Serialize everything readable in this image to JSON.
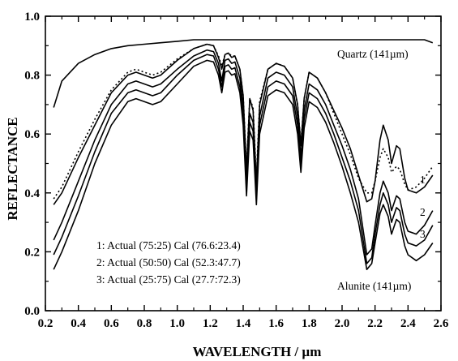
{
  "chart_data": {
    "type": "line",
    "xlabel": "WAVELENGTH / µm",
    "ylabel": "REFLECTANCE",
    "xlim": [
      0.2,
      2.6
    ],
    "ylim": [
      0.0,
      1.0
    ],
    "x_ticks": [
      0.2,
      0.4,
      0.6,
      0.8,
      1.0,
      1.2,
      1.4,
      1.6,
      1.8,
      2.0,
      2.2,
      2.4,
      2.6
    ],
    "y_ticks": [
      0.0,
      0.2,
      0.4,
      0.6,
      0.8,
      1.0
    ],
    "x_tick_labels": [
      "0.2",
      "0.4",
      "0.6",
      "0.8",
      "1.0",
      "1.2",
      "1.4",
      "1.6",
      "1.8",
      "2.0",
      "2.2",
      "2.4",
      "2.6"
    ],
    "y_tick_labels": [
      "0.0",
      "0.2",
      "0.4",
      "0.6",
      "0.8",
      "1.0"
    ],
    "grid": false,
    "legend_lines": [
      "1: Actual (75:25)  Cal (76.6:23.4)",
      "2: Actual (50:50)  Cal (52.3:47.7)",
      "3: Actual (25:75)  Cal (27.7:72.3)"
    ],
    "labels": {
      "quartz": "Quartz (141µm)",
      "alunite": "Alunite (141µm)",
      "curve1": "1",
      "curve2": "2",
      "curve3": "3"
    },
    "series": [
      {
        "name": "Quartz (141µm)",
        "style": "solid",
        "points": [
          [
            0.25,
            0.69
          ],
          [
            0.3,
            0.78
          ],
          [
            0.4,
            0.84
          ],
          [
            0.5,
            0.87
          ],
          [
            0.6,
            0.89
          ],
          [
            0.7,
            0.9
          ],
          [
            0.8,
            0.905
          ],
          [
            0.9,
            0.91
          ],
          [
            1.0,
            0.915
          ],
          [
            1.1,
            0.92
          ],
          [
            1.2,
            0.92
          ],
          [
            1.3,
            0.92
          ],
          [
            1.4,
            0.92
          ],
          [
            1.5,
            0.92
          ],
          [
            1.6,
            0.92
          ],
          [
            1.7,
            0.92
          ],
          [
            1.8,
            0.92
          ],
          [
            1.9,
            0.92
          ],
          [
            2.0,
            0.92
          ],
          [
            2.1,
            0.92
          ],
          [
            2.2,
            0.92
          ],
          [
            2.3,
            0.92
          ],
          [
            2.4,
            0.92
          ],
          [
            2.5,
            0.92
          ],
          [
            2.55,
            0.91
          ]
        ]
      },
      {
        "name": "1",
        "style": "solid",
        "points": [
          [
            0.25,
            0.36
          ],
          [
            0.3,
            0.4
          ],
          [
            0.4,
            0.52
          ],
          [
            0.5,
            0.63
          ],
          [
            0.6,
            0.74
          ],
          [
            0.7,
            0.8
          ],
          [
            0.75,
            0.81
          ],
          [
            0.8,
            0.8
          ],
          [
            0.85,
            0.79
          ],
          [
            0.9,
            0.8
          ],
          [
            1.0,
            0.85
          ],
          [
            1.1,
            0.89
          ],
          [
            1.18,
            0.905
          ],
          [
            1.22,
            0.9
          ],
          [
            1.25,
            0.86
          ],
          [
            1.27,
            0.82
          ],
          [
            1.29,
            0.87
          ],
          [
            1.31,
            0.875
          ],
          [
            1.33,
            0.86
          ],
          [
            1.35,
            0.865
          ],
          [
            1.38,
            0.82
          ],
          [
            1.4,
            0.73
          ],
          [
            1.42,
            0.47
          ],
          [
            1.44,
            0.72
          ],
          [
            1.46,
            0.68
          ],
          [
            1.48,
            0.43
          ],
          [
            1.5,
            0.7
          ],
          [
            1.55,
            0.82
          ],
          [
            1.6,
            0.84
          ],
          [
            1.65,
            0.83
          ],
          [
            1.7,
            0.79
          ],
          [
            1.73,
            0.7
          ],
          [
            1.75,
            0.56
          ],
          [
            1.77,
            0.72
          ],
          [
            1.8,
            0.81
          ],
          [
            1.85,
            0.79
          ],
          [
            1.9,
            0.74
          ],
          [
            1.95,
            0.68
          ],
          [
            2.0,
            0.62
          ],
          [
            2.05,
            0.55
          ],
          [
            2.1,
            0.46
          ],
          [
            2.15,
            0.37
          ],
          [
            2.18,
            0.38
          ],
          [
            2.2,
            0.44
          ],
          [
            2.23,
            0.58
          ],
          [
            2.25,
            0.63
          ],
          [
            2.28,
            0.58
          ],
          [
            2.3,
            0.5
          ],
          [
            2.33,
            0.56
          ],
          [
            2.35,
            0.55
          ],
          [
            2.38,
            0.45
          ],
          [
            2.4,
            0.41
          ],
          [
            2.45,
            0.4
          ],
          [
            2.5,
            0.42
          ],
          [
            2.55,
            0.46
          ]
        ]
      },
      {
        "name": "1 dotted",
        "style": "dotted",
        "points": [
          [
            0.25,
            0.38
          ],
          [
            0.3,
            0.42
          ],
          [
            0.4,
            0.54
          ],
          [
            0.5,
            0.65
          ],
          [
            0.6,
            0.75
          ],
          [
            0.7,
            0.81
          ],
          [
            0.75,
            0.82
          ],
          [
            0.8,
            0.81
          ],
          [
            0.85,
            0.8
          ],
          [
            0.9,
            0.81
          ],
          [
            1.0,
            0.855
          ],
          [
            1.1,
            0.89
          ],
          [
            1.18,
            0.905
          ],
          [
            1.22,
            0.9
          ],
          [
            1.25,
            0.865
          ],
          [
            1.27,
            0.83
          ],
          [
            1.29,
            0.87
          ],
          [
            1.31,
            0.875
          ],
          [
            1.33,
            0.865
          ],
          [
            1.35,
            0.865
          ],
          [
            1.38,
            0.82
          ],
          [
            1.4,
            0.73
          ],
          [
            1.42,
            0.49
          ],
          [
            1.44,
            0.72
          ],
          [
            1.46,
            0.69
          ],
          [
            1.48,
            0.45
          ],
          [
            1.5,
            0.71
          ],
          [
            1.55,
            0.82
          ],
          [
            1.6,
            0.84
          ],
          [
            1.65,
            0.83
          ],
          [
            1.7,
            0.79
          ],
          [
            1.73,
            0.7
          ],
          [
            1.75,
            0.57
          ],
          [
            1.77,
            0.72
          ],
          [
            1.8,
            0.81
          ],
          [
            1.85,
            0.79
          ],
          [
            1.9,
            0.74
          ],
          [
            1.95,
            0.67
          ],
          [
            2.0,
            0.6
          ],
          [
            2.05,
            0.53
          ],
          [
            2.1,
            0.45
          ],
          [
            2.15,
            0.4
          ],
          [
            2.18,
            0.4
          ],
          [
            2.2,
            0.44
          ],
          [
            2.23,
            0.52
          ],
          [
            2.25,
            0.55
          ],
          [
            2.28,
            0.52
          ],
          [
            2.3,
            0.47
          ],
          [
            2.33,
            0.49
          ],
          [
            2.35,
            0.48
          ],
          [
            2.38,
            0.43
          ],
          [
            2.4,
            0.41
          ],
          [
            2.45,
            0.42
          ],
          [
            2.5,
            0.45
          ],
          [
            2.55,
            0.49
          ]
        ]
      },
      {
        "name": "2",
        "style": "solid",
        "points": [
          [
            0.25,
            0.24
          ],
          [
            0.3,
            0.3
          ],
          [
            0.4,
            0.44
          ],
          [
            0.5,
            0.58
          ],
          [
            0.6,
            0.7
          ],
          [
            0.7,
            0.77
          ],
          [
            0.75,
            0.78
          ],
          [
            0.8,
            0.77
          ],
          [
            0.85,
            0.76
          ],
          [
            0.9,
            0.77
          ],
          [
            1.0,
            0.82
          ],
          [
            1.1,
            0.865
          ],
          [
            1.18,
            0.885
          ],
          [
            1.22,
            0.88
          ],
          [
            1.25,
            0.84
          ],
          [
            1.27,
            0.78
          ],
          [
            1.29,
            0.85
          ],
          [
            1.31,
            0.855
          ],
          [
            1.33,
            0.84
          ],
          [
            1.35,
            0.845
          ],
          [
            1.38,
            0.79
          ],
          [
            1.4,
            0.69
          ],
          [
            1.42,
            0.43
          ],
          [
            1.44,
            0.67
          ],
          [
            1.46,
            0.64
          ],
          [
            1.48,
            0.4
          ],
          [
            1.5,
            0.66
          ],
          [
            1.55,
            0.79
          ],
          [
            1.6,
            0.81
          ],
          [
            1.65,
            0.8
          ],
          [
            1.7,
            0.76
          ],
          [
            1.73,
            0.66
          ],
          [
            1.75,
            0.52
          ],
          [
            1.77,
            0.68
          ],
          [
            1.8,
            0.77
          ],
          [
            1.85,
            0.75
          ],
          [
            1.9,
            0.7
          ],
          [
            1.95,
            0.63
          ],
          [
            2.0,
            0.56
          ],
          [
            2.05,
            0.48
          ],
          [
            2.1,
            0.38
          ],
          [
            2.15,
            0.19
          ],
          [
            2.18,
            0.21
          ],
          [
            2.2,
            0.29
          ],
          [
            2.23,
            0.4
          ],
          [
            2.25,
            0.44
          ],
          [
            2.28,
            0.4
          ],
          [
            2.3,
            0.34
          ],
          [
            2.33,
            0.39
          ],
          [
            2.35,
            0.38
          ],
          [
            2.38,
            0.3
          ],
          [
            2.4,
            0.27
          ],
          [
            2.45,
            0.26
          ],
          [
            2.5,
            0.29
          ],
          [
            2.55,
            0.34
          ]
        ]
      },
      {
        "name": "3",
        "style": "solid",
        "points": [
          [
            0.25,
            0.19
          ],
          [
            0.3,
            0.25
          ],
          [
            0.4,
            0.39
          ],
          [
            0.5,
            0.54
          ],
          [
            0.6,
            0.67
          ],
          [
            0.7,
            0.74
          ],
          [
            0.75,
            0.75
          ],
          [
            0.8,
            0.74
          ],
          [
            0.85,
            0.73
          ],
          [
            0.9,
            0.74
          ],
          [
            1.0,
            0.8
          ],
          [
            1.1,
            0.85
          ],
          [
            1.18,
            0.87
          ],
          [
            1.22,
            0.865
          ],
          [
            1.25,
            0.82
          ],
          [
            1.27,
            0.76
          ],
          [
            1.29,
            0.83
          ],
          [
            1.31,
            0.835
          ],
          [
            1.33,
            0.82
          ],
          [
            1.35,
            0.825
          ],
          [
            1.38,
            0.76
          ],
          [
            1.4,
            0.66
          ],
          [
            1.42,
            0.41
          ],
          [
            1.44,
            0.64
          ],
          [
            1.46,
            0.61
          ],
          [
            1.48,
            0.38
          ],
          [
            1.5,
            0.63
          ],
          [
            1.55,
            0.76
          ],
          [
            1.6,
            0.78
          ],
          [
            1.65,
            0.77
          ],
          [
            1.7,
            0.73
          ],
          [
            1.73,
            0.63
          ],
          [
            1.75,
            0.5
          ],
          [
            1.77,
            0.65
          ],
          [
            1.8,
            0.74
          ],
          [
            1.85,
            0.72
          ],
          [
            1.9,
            0.67
          ],
          [
            1.95,
            0.6
          ],
          [
            2.0,
            0.52
          ],
          [
            2.05,
            0.44
          ],
          [
            2.1,
            0.34
          ],
          [
            2.15,
            0.16
          ],
          [
            2.18,
            0.18
          ],
          [
            2.2,
            0.26
          ],
          [
            2.23,
            0.36
          ],
          [
            2.25,
            0.4
          ],
          [
            2.28,
            0.36
          ],
          [
            2.3,
            0.3
          ],
          [
            2.33,
            0.35
          ],
          [
            2.35,
            0.34
          ],
          [
            2.38,
            0.26
          ],
          [
            2.4,
            0.23
          ],
          [
            2.45,
            0.22
          ],
          [
            2.5,
            0.24
          ],
          [
            2.55,
            0.29
          ]
        ]
      },
      {
        "name": "Alunite (141µm)",
        "style": "solid",
        "points": [
          [
            0.25,
            0.14
          ],
          [
            0.3,
            0.2
          ],
          [
            0.4,
            0.34
          ],
          [
            0.5,
            0.5
          ],
          [
            0.6,
            0.63
          ],
          [
            0.7,
            0.71
          ],
          [
            0.75,
            0.72
          ],
          [
            0.8,
            0.71
          ],
          [
            0.85,
            0.7
          ],
          [
            0.9,
            0.71
          ],
          [
            1.0,
            0.77
          ],
          [
            1.1,
            0.83
          ],
          [
            1.18,
            0.85
          ],
          [
            1.22,
            0.845
          ],
          [
            1.25,
            0.8
          ],
          [
            1.27,
            0.74
          ],
          [
            1.29,
            0.81
          ],
          [
            1.31,
            0.815
          ],
          [
            1.33,
            0.8
          ],
          [
            1.35,
            0.805
          ],
          [
            1.38,
            0.74
          ],
          [
            1.4,
            0.63
          ],
          [
            1.42,
            0.39
          ],
          [
            1.44,
            0.61
          ],
          [
            1.46,
            0.58
          ],
          [
            1.48,
            0.36
          ],
          [
            1.5,
            0.6
          ],
          [
            1.55,
            0.73
          ],
          [
            1.6,
            0.75
          ],
          [
            1.65,
            0.74
          ],
          [
            1.7,
            0.7
          ],
          [
            1.73,
            0.6
          ],
          [
            1.75,
            0.47
          ],
          [
            1.77,
            0.62
          ],
          [
            1.8,
            0.71
          ],
          [
            1.85,
            0.69
          ],
          [
            1.9,
            0.64
          ],
          [
            1.95,
            0.57
          ],
          [
            2.0,
            0.49
          ],
          [
            2.05,
            0.4
          ],
          [
            2.1,
            0.3
          ],
          [
            2.15,
            0.14
          ],
          [
            2.18,
            0.16
          ],
          [
            2.2,
            0.23
          ],
          [
            2.23,
            0.33
          ],
          [
            2.25,
            0.36
          ],
          [
            2.28,
            0.32
          ],
          [
            2.3,
            0.26
          ],
          [
            2.33,
            0.31
          ],
          [
            2.35,
            0.3
          ],
          [
            2.38,
            0.22
          ],
          [
            2.4,
            0.19
          ],
          [
            2.45,
            0.17
          ],
          [
            2.5,
            0.19
          ],
          [
            2.55,
            0.23
          ]
        ]
      }
    ]
  }
}
